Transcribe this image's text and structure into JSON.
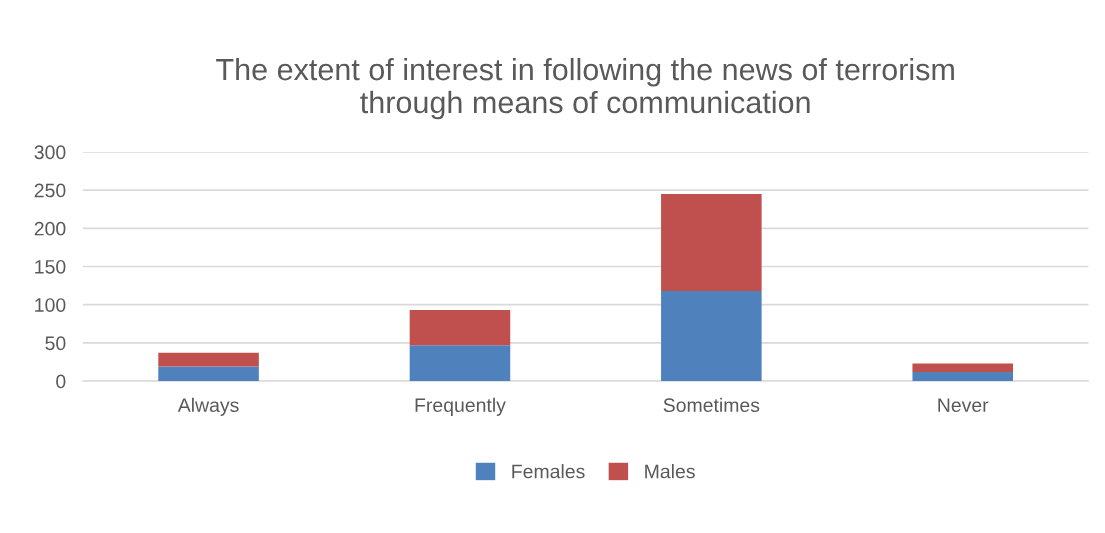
{
  "chart_data": {
    "type": "bar",
    "title": "The extent of interest in following the news of terrorism\nthrough means of communication",
    "categories": [
      "Always",
      "Frequently",
      "Sometimes",
      "Never"
    ],
    "series": [
      {
        "name": "Females",
        "color": "#4f81bd",
        "values": [
          19,
          47,
          118,
          12
        ]
      },
      {
        "name": "Males",
        "color": "#c0504d",
        "values": [
          18,
          46,
          127,
          11
        ]
      }
    ],
    "stacked": true,
    "ylim": [
      0,
      300
    ],
    "yticks": [
      0,
      50,
      100,
      150,
      200,
      250,
      300
    ],
    "grid": "y",
    "legend": "bottom"
  }
}
